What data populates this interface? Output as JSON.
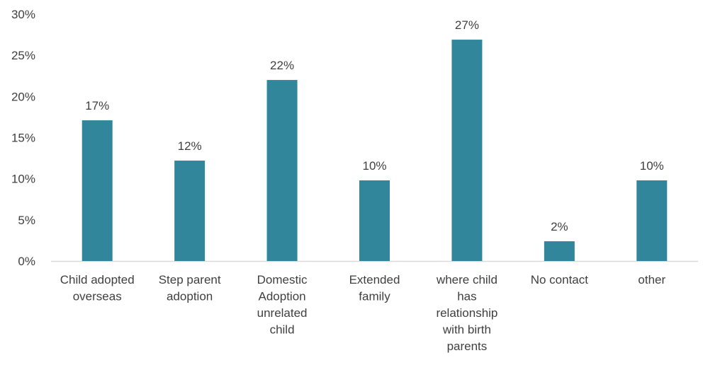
{
  "chart_data": {
    "type": "bar",
    "categories": [
      [
        "Child adopted",
        "overseas"
      ],
      [
        "Step parent",
        "adoption"
      ],
      [
        "Domestic",
        "Adoption",
        "unrelated",
        "child"
      ],
      [
        "Extended",
        "family"
      ],
      [
        "where child",
        "has",
        "relationship",
        "with birth",
        "parents"
      ],
      [
        "No contact"
      ],
      [
        "other"
      ]
    ],
    "values": [
      17.1,
      12.2,
      22.0,
      9.8,
      26.9,
      2.4,
      9.8
    ],
    "data_labels": [
      "17%",
      "12%",
      "22%",
      "10%",
      "27%",
      "2%",
      "10%"
    ],
    "y_ticks": [
      {
        "value": 0,
        "label": "0%"
      },
      {
        "value": 5,
        "label": "5%"
      },
      {
        "value": 10,
        "label": "10%"
      },
      {
        "value": 15,
        "label": "15%"
      },
      {
        "value": 20,
        "label": "20%"
      },
      {
        "value": 25,
        "label": "25%"
      },
      {
        "value": 30,
        "label": "30%"
      }
    ],
    "ylim": [
      0,
      30
    ],
    "unit": "%",
    "grid": false,
    "legend": "none",
    "bar_color": "#31869b",
    "axis_color": "#d9d9d9"
  }
}
